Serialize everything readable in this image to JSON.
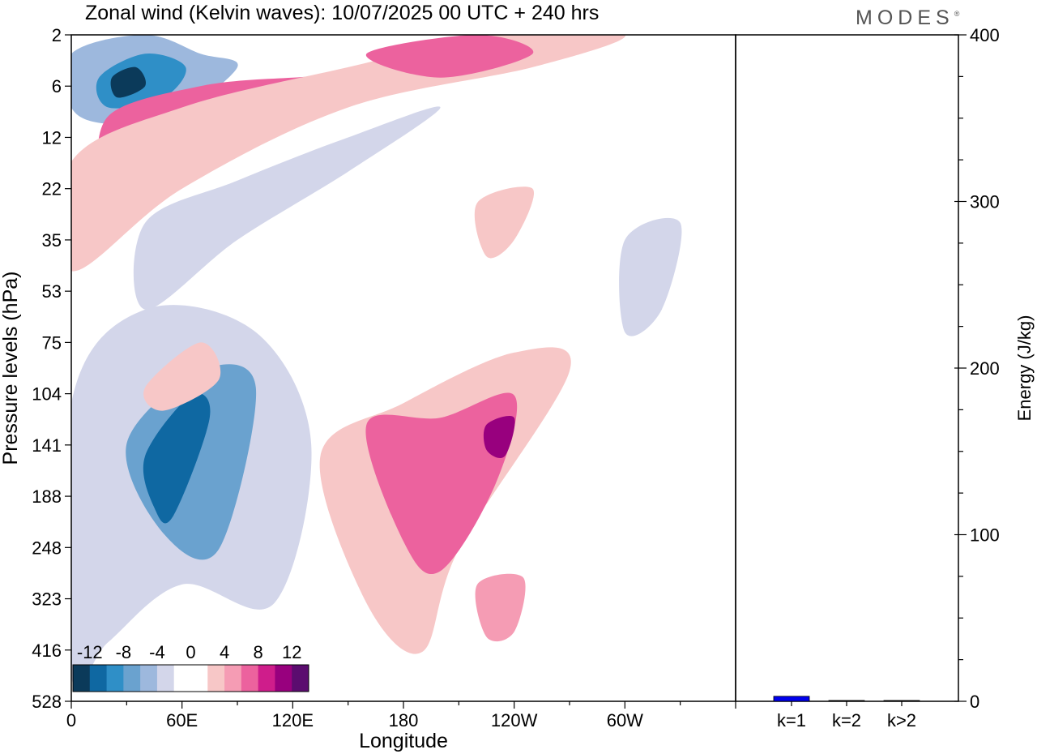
{
  "logo": "MODES",
  "logo_mark": "®",
  "chart_data": [
    {
      "type": "heatmap",
      "title": "Zonal wind (Kelvin waves):  10/07/2025  00 UTC  + 240 hrs",
      "xlabel": "Longitude",
      "ylabel": "Pressure levels (hPa)",
      "x_ticks": [
        "0",
        "60E",
        "120E",
        "180",
        "120W",
        "60W"
      ],
      "x_range_deg": [
        0,
        360
      ],
      "y_ticks": [
        "2",
        "6",
        "12",
        "22",
        "35",
        "53",
        "75",
        "104",
        "141",
        "188",
        "248",
        "323",
        "416",
        "528"
      ],
      "colorbar": {
        "labels": [
          "-12",
          "-8",
          "-4",
          "0",
          "4",
          "8",
          "12"
        ],
        "levels": [
          -14,
          -12,
          -10,
          -8,
          -6,
          -4,
          -2,
          0,
          2,
          4,
          6,
          8,
          10,
          12,
          14
        ],
        "colors": [
          "#0b3a5a",
          "#0f68a2",
          "#2f8fc7",
          "#6aa2cf",
          "#9db8dd",
          "#d3d6ea",
          "#ffffff",
          "#ffffff",
          "#f7c7c7",
          "#f59cb4",
          "#ec629e",
          "#cf1d8b",
          "#98007e",
          "#5b0c6f"
        ]
      },
      "contours": [
        {
          "value": -5,
          "points": [
            [
              0,
              3
            ],
            [
              40,
              2
            ],
            [
              70,
              3
            ],
            [
              90,
              4
            ],
            [
              55,
              9
            ],
            [
              20,
              10
            ],
            [
              0,
              8
            ]
          ]
        },
        {
          "value": -9,
          "points": [
            [
              15,
              5
            ],
            [
              40,
              3
            ],
            [
              62,
              4
            ],
            [
              50,
              7
            ],
            [
              20,
              8
            ]
          ]
        },
        {
          "value": -13,
          "points": [
            [
              22,
              5
            ],
            [
              35,
              4
            ],
            [
              40,
              6
            ],
            [
              25,
              7
            ]
          ]
        },
        {
          "value": 7,
          "points": [
            [
              20,
              9
            ],
            [
              70,
              6
            ],
            [
              120,
              5
            ],
            [
              150,
              5
            ],
            [
              120,
              8
            ],
            [
              60,
              12
            ],
            [
              20,
              20
            ]
          ]
        },
        {
          "value": 3,
          "points": [
            [
              0,
              16
            ],
            [
              60,
              8
            ],
            [
              150,
              4
            ],
            [
              230,
              2
            ],
            [
              300,
              2
            ],
            [
              250,
              4
            ],
            [
              150,
              8
            ],
            [
              60,
              22
            ],
            [
              0,
              45
            ]
          ]
        },
        {
          "value": 7,
          "points": [
            [
              160,
              3
            ],
            [
              220,
              2
            ],
            [
              250,
              3
            ],
            [
              200,
              5
            ]
          ]
        },
        {
          "value": -3,
          "points": [
            [
              40,
              30
            ],
            [
              90,
              20
            ],
            [
              150,
              12
            ],
            [
              200,
              8
            ],
            [
              150,
              18
            ],
            [
              90,
              35
            ],
            [
              40,
              60
            ]
          ]
        },
        {
          "value": 3,
          "points": [
            [
              220,
              25
            ],
            [
              250,
              22
            ],
            [
              240,
              35
            ],
            [
              225,
              40
            ]
          ]
        },
        {
          "value": -3,
          "points": [
            [
              0,
              110
            ],
            [
              40,
              60
            ],
            [
              100,
              70
            ],
            [
              130,
              140
            ],
            [
              110,
              330
            ],
            [
              60,
              300
            ],
            [
              20,
              400
            ],
            [
              0,
              470
            ]
          ]
        },
        {
          "value": -7,
          "points": [
            [
              30,
              140
            ],
            [
              70,
              90
            ],
            [
              100,
              100
            ],
            [
              80,
              250
            ],
            [
              50,
              230
            ]
          ]
        },
        {
          "value": -11,
          "points": [
            [
              40,
              150
            ],
            [
              65,
              105
            ],
            [
              75,
              120
            ],
            [
              55,
              210
            ],
            [
              45,
              200
            ]
          ]
        },
        {
          "value": 3,
          "points": [
            [
              135,
              150
            ],
            [
              180,
              110
            ],
            [
              240,
              80
            ],
            [
              270,
              90
            ],
            [
              210,
              250
            ],
            [
              190,
              420
            ],
            [
              160,
              330
            ]
          ]
        },
        {
          "value": 7,
          "points": [
            [
              160,
              125
            ],
            [
              200,
              120
            ],
            [
              240,
              105
            ],
            [
              230,
              175
            ],
            [
              200,
              280
            ],
            [
              180,
              240
            ]
          ]
        },
        {
          "value": 11,
          "points": [
            [
              225,
              125
            ],
            [
              240,
              120
            ],
            [
              235,
              150
            ],
            [
              225,
              145
            ]
          ]
        },
        {
          "value": 5,
          "points": [
            [
              220,
              300
            ],
            [
              245,
              290
            ],
            [
              240,
              380
            ],
            [
              225,
              390
            ]
          ]
        },
        {
          "value": 3,
          "points": [
            [
              40,
              100
            ],
            [
              70,
              75
            ],
            [
              80,
              95
            ],
            [
              50,
              115
            ]
          ]
        },
        {
          "value": -3,
          "points": [
            [
              300,
              35
            ],
            [
              330,
              30
            ],
            [
              320,
              60
            ],
            [
              300,
              70
            ]
          ]
        }
      ]
    },
    {
      "type": "bar",
      "categories": [
        "k=1",
        "k=2",
        "k>2"
      ],
      "values": [
        3,
        0.5,
        0.5
      ],
      "ylabel": "Energy (J/kg)",
      "ylim": [
        0,
        400
      ],
      "y_ticks": [
        0,
        100,
        200,
        300,
        400
      ],
      "bar_color": "#0000ee"
    }
  ]
}
